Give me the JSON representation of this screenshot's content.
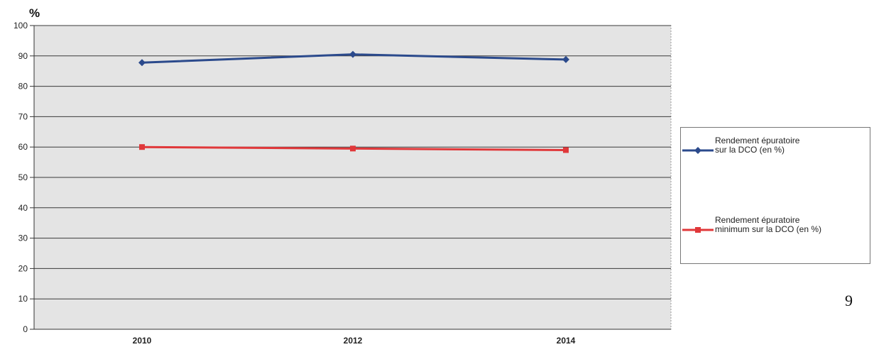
{
  "chart_data": {
    "type": "line",
    "title": "",
    "ylabel": "%",
    "xlabel": "",
    "x": [
      "2010",
      "2012",
      "2014"
    ],
    "ylim": [
      0,
      100
    ],
    "yticks": [
      0,
      10,
      20,
      30,
      40,
      50,
      60,
      70,
      80,
      90,
      100
    ],
    "grid": true,
    "legend_position": "right",
    "series": [
      {
        "name": "Rendement épuratoire sur la DCO (en %)",
        "name_lines": [
          "Rendement épuratoire",
          "sur la DCO (en %)"
        ],
        "values": [
          87.8,
          90.5,
          88.8
        ],
        "color": "#2b4a8c",
        "marker": "diamond"
      },
      {
        "name": "Rendement épuratoire minimum sur la DCO (en %)",
        "name_lines": [
          "Rendement épuratoire",
          "minimum sur la DCO (en %)"
        ],
        "values": [
          60,
          59.5,
          59
        ],
        "color": "#e0383a",
        "marker": "square"
      }
    ]
  },
  "page_number": "9"
}
